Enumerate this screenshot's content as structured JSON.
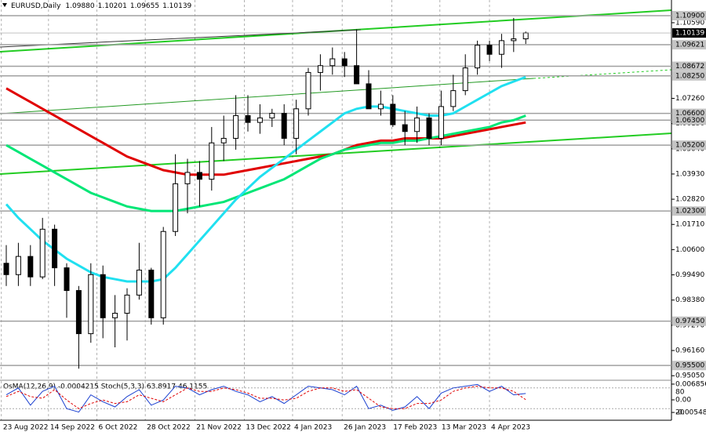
{
  "chart_data": {
    "type": "candlestick",
    "title": "EURUSD,Daily",
    "header_values": [
      {
        "value": 1.0988,
        "label": "1.09880"
      },
      {
        "value": 1.10201,
        "label": "1.10201"
      },
      {
        "value": 1.09655,
        "label": "1.09655"
      },
      1.10139
    ],
    "open": [
      1.0,
      0.995,
      1.003,
      0.994,
      1.015,
      0.998,
      0.988,
      0.969,
      0.995,
      0.976,
      0.978,
      0.986,
      0.997,
      0.976,
      1.014,
      1.035,
      1.04,
      1.037,
      1.053,
      1.055,
      1.065,
      1.062,
      1.064,
      1.066,
      1.055,
      1.068,
      1.084,
      1.087,
      1.09,
      1.087,
      1.079,
      1.068,
      1.07,
      1.061,
      1.058,
      1.064,
      1.055,
      1.069,
      1.076,
      1.086,
      1.096,
      1.092,
      1.098,
      1.0988
    ],
    "high": [
      1.008,
      1.009,
      1.008,
      1.02,
      1.017,
      1.0,
      0.99,
      1.0,
      0.999,
      0.986,
      0.989,
      1.009,
      0.998,
      1.016,
      1.048,
      1.046,
      1.045,
      1.06,
      1.065,
      1.074,
      1.074,
      1.07,
      1.068,
      1.07,
      1.072,
      1.086,
      1.092,
      1.095,
      1.093,
      1.103,
      1.085,
      1.076,
      1.074,
      1.067,
      1.069,
      1.066,
      1.076,
      1.083,
      1.092,
      1.098,
      1.098,
      1.101,
      1.108,
      1.10201
    ],
    "low": [
      0.99,
      0.99,
      0.99,
      0.993,
      0.99,
      0.976,
      0.9536,
      0.965,
      0.967,
      0.963,
      0.966,
      0.984,
      0.973,
      0.973,
      1.012,
      1.022,
      1.025,
      1.032,
      1.045,
      1.05,
      1.058,
      1.057,
      1.06,
      1.052,
      1.048,
      1.065,
      1.076,
      1.083,
      1.082,
      1.079,
      1.068,
      1.065,
      1.06,
      1.052,
      1.053,
      1.052,
      1.052,
      1.067,
      1.074,
      1.083,
      1.089,
      1.086,
      1.093,
      1.09655
    ],
    "close": [
      0.995,
      1.003,
      0.994,
      1.015,
      0.998,
      0.988,
      0.969,
      0.995,
      0.976,
      0.978,
      0.986,
      0.997,
      0.976,
      1.014,
      1.035,
      1.04,
      1.037,
      1.053,
      1.055,
      1.065,
      1.062,
      1.064,
      1.066,
      1.055,
      1.068,
      1.084,
      1.087,
      1.09,
      1.087,
      1.079,
      1.068,
      1.07,
      1.061,
      1.058,
      1.064,
      1.055,
      1.069,
      1.076,
      1.086,
      1.096,
      1.092,
      1.098,
      1.0988,
      1.10139
    ],
    "series": [
      {
        "color": "#e00000",
        "values": [
          1.077,
          1.074,
          1.071,
          1.068,
          1.065,
          1.062,
          1.059,
          1.056,
          1.053,
          1.05,
          1.047,
          1.045,
          1.043,
          1.041,
          1.04,
          1.039,
          1.039,
          1.039,
          1.039,
          1.04,
          1.041,
          1.042,
          1.043,
          1.044,
          1.045,
          1.046,
          1.047,
          1.048,
          1.05,
          1.052,
          1.053,
          1.054,
          1.054,
          1.055,
          1.055,
          1.055,
          1.055,
          1.056,
          1.057,
          1.058,
          1.059,
          1.06,
          1.061,
          1.062
        ]
      },
      {
        "color": "#00e676",
        "values": [
          1.052,
          1.049,
          1.046,
          1.043,
          1.04,
          1.037,
          1.034,
          1.031,
          1.029,
          1.027,
          1.025,
          1.024,
          1.023,
          1.023,
          1.023,
          1.024,
          1.025,
          1.026,
          1.027,
          1.029,
          1.031,
          1.033,
          1.035,
          1.037,
          1.04,
          1.043,
          1.046,
          1.048,
          1.05,
          1.051,
          1.052,
          1.053,
          1.053,
          1.054,
          1.054,
          1.055,
          1.056,
          1.057,
          1.058,
          1.059,
          1.06,
          1.062,
          1.063,
          1.065
        ]
      },
      {
        "color": "#20e0f0",
        "values": [
          1.026,
          1.02,
          1.015,
          1.01,
          1.006,
          1.002,
          0.999,
          0.996,
          0.994,
          0.993,
          0.992,
          0.992,
          0.992,
          0.993,
          0.998,
          1.004,
          1.01,
          1.016,
          1.022,
          1.028,
          1.033,
          1.038,
          1.042,
          1.046,
          1.05,
          1.054,
          1.058,
          1.062,
          1.066,
          1.068,
          1.069,
          1.069,
          1.068,
          1.067,
          1.066,
          1.065,
          1.065,
          1.066,
          1.069,
          1.072,
          1.075,
          1.078,
          1.08,
          1.082
        ]
      }
    ],
    "xlim": [
      -0.52,
      55
    ],
    "xticks": [
      {
        "value": -0.4,
        "label": "23 Aug 2022"
      },
      {
        "value": 3.5,
        "label": "14 Sep 2022"
      },
      {
        "value": 7.5,
        "label": "6 Oct 2022"
      },
      {
        "value": 11.5,
        "label": "28 Oct 2022"
      },
      {
        "value": 15.6,
        "label": "21 Nov 2022"
      },
      {
        "value": 19.7,
        "label": "13 Dec 2022"
      },
      {
        "value": 23.7,
        "label": "4 Jan 2023"
      },
      {
        "value": 27.8,
        "label": "26 Jan 2023"
      },
      {
        "value": 31.9,
        "label": "17 Feb 2023"
      },
      {
        "value": 35.9,
        "label": "13 Mar 2023"
      },
      {
        "value": 40.0,
        "label": "4 Apr 2023"
      }
    ],
    "ylim": [
      0.9485,
      1.1159
    ],
    "yticks": [
      {
        "value": 1.1059,
        "label": "1.10590"
      },
      {
        "value": 1.0726,
        "label": "1.07260"
      },
      {
        "value": 1.0615,
        "label": "1.06150"
      },
      {
        "value": 1.0504,
        "label": "1.05040"
      },
      {
        "value": 1.0393,
        "label": "1.03930"
      },
      {
        "value": 1.0282,
        "label": "1.02820"
      },
      {
        "value": 1.0171,
        "label": "1.01710"
      },
      {
        "value": 1.006,
        "label": "1.00600"
      },
      {
        "value": 0.9949,
        "label": "0.99490"
      },
      {
        "value": 0.9838,
        "label": "0.98380"
      },
      {
        "value": 0.9727,
        "label": "0.97270"
      },
      {
        "value": 0.9616,
        "label": "0.96160"
      },
      {
        "value": 0.9505,
        "label": "0.95050"
      }
    ],
    "levels": [
      {
        "value": 1.109,
        "label": "1.10900"
      },
      {
        "value": 1.09621,
        "label": "1.09621"
      },
      {
        "value": 1.08672,
        "label": "1.08672"
      },
      {
        "value": 1.0825,
        "label": "1.08250"
      },
      {
        "value": 1.066,
        "label": "1.06600"
      },
      {
        "value": 1.063,
        "label": "1.06300"
      },
      {
        "value": 1.052,
        "label": "1.05200"
      },
      {
        "value": 1.023,
        "label": "1.02300"
      },
      {
        "value": 0.9745,
        "label": "0.97450"
      },
      {
        "value": 0.955,
        "label": "0.95500"
      }
    ],
    "current_price": 1.10139,
    "oscillator": {
      "title": "OsMA(12,26,9) -0.0004215 Stoch(5,3,3) 63.8917 46.1155",
      "ylim": [
        0,
        100
      ],
      "yticks": [
        80,
        20
      ],
      "osma_ylim": [
        -0.0082,
        0.0082
      ],
      "osma_ticks": [
        0.0068567,
        {
          "value": 0,
          "label": "0.00"
        },
        -0.005485
      ],
      "series": [
        {
          "color": "#1a3fd0",
          "values": [
            60,
            80,
            30,
            70,
            85,
            20,
            10,
            60,
            40,
            25,
            55,
            75,
            30,
            45,
            85,
            80,
            60,
            75,
            85,
            70,
            60,
            40,
            55,
            35,
            60,
            85,
            80,
            75,
            60,
            85,
            20,
            30,
            15,
            25,
            55,
            20,
            65,
            80,
            85,
            90,
            70,
            85,
            60,
            64
          ]
        },
        {
          "color": "#e00000",
          "values": [
            55,
            70,
            55,
            50,
            75,
            45,
            20,
            35,
            45,
            35,
            40,
            60,
            50,
            40,
            60,
            80,
            70,
            70,
            80,
            75,
            65,
            50,
            50,
            45,
            50,
            70,
            80,
            80,
            70,
            75,
            50,
            25,
            20,
            20,
            35,
            35,
            45,
            70,
            80,
            85,
            80,
            80,
            70,
            46
          ]
        }
      ]
    }
  }
}
